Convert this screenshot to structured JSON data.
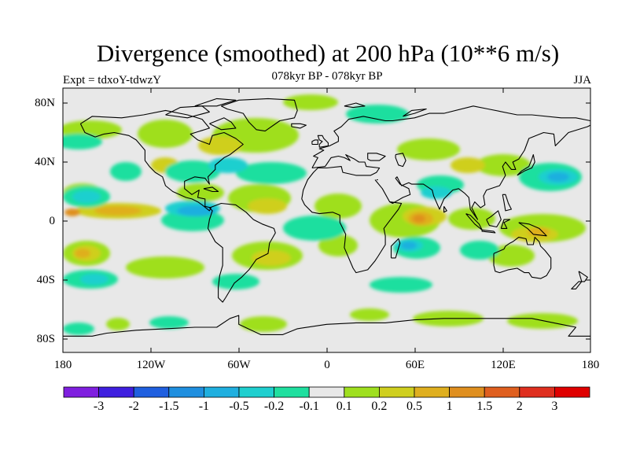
{
  "title": "Divergence (smoothed) at 200 hPa (10**6 m/s)",
  "subtitle": "078kyr BP - 078kyr BP",
  "experiment": "Expt = tdxoY-tdwzY",
  "season": "JJA",
  "latitude_labels": [
    "80N",
    "40N",
    "0",
    "40S",
    "80S"
  ],
  "longitude_labels": [
    "180",
    "120W",
    "60W",
    "0",
    "60E",
    "120E",
    "180"
  ],
  "colorbar": {
    "colors": [
      "#7f1fdf",
      "#3f1fdf",
      "#1f5fdf",
      "#1f8fdf",
      "#1fafdf",
      "#1fcfcf",
      "#1fdf9f",
      "#e8e8e8",
      "#9fdf1f",
      "#cfcf1f",
      "#dfaf1f",
      "#df8f1f",
      "#df5f1f",
      "#df2f1f",
      "#df0000"
    ],
    "labels": [
      "-3",
      "-2",
      "-1.5",
      "-1",
      "-0.5",
      "-0.2",
      "-0.1",
      "0.1",
      "0.2",
      "0.5",
      "1",
      "1.5",
      "2",
      "3"
    ]
  },
  "map": {
    "background_color": "#e8e8e8",
    "coastline_color": "#000000"
  }
}
